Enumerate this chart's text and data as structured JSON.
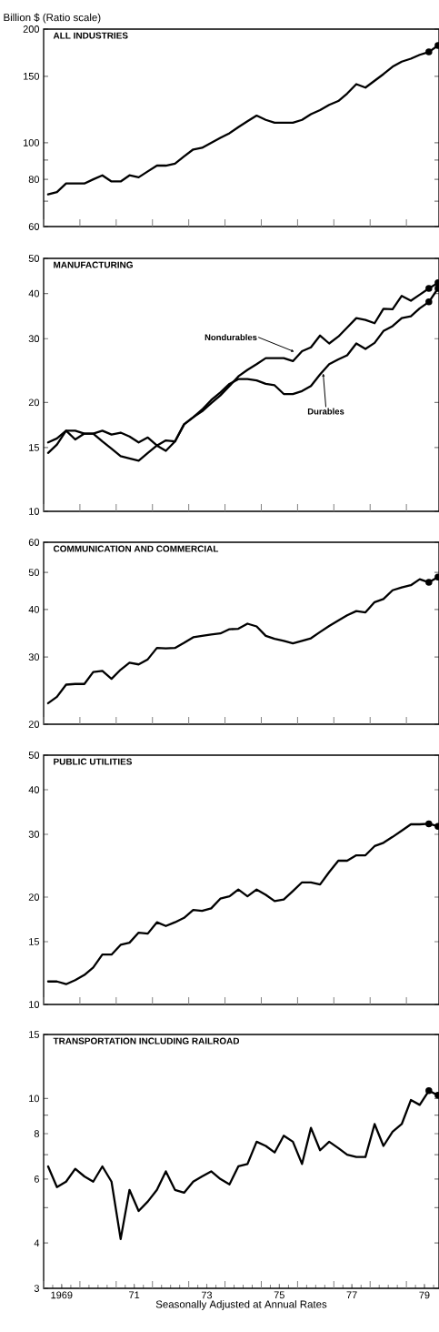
{
  "chart_data": [
    {
      "type": "line",
      "title": "ALL INDUSTRIES",
      "ylabel": "Billion $ (Ratio scale)",
      "log": "y",
      "tick_labels": "y",
      "marker": "none",
      "line_style": "solid",
      "x": [
        "1969-02-15",
        "1969-05-15",
        "1969-08-15",
        "1969-11-15",
        "1970-02-15",
        "1970-05-15",
        "1970-08-15",
        "1970-11-15",
        "1971-02-15",
        "1971-05-15",
        "1971-08-15",
        "1971-11-15",
        "1972-02-15",
        "1972-05-15",
        "1972-08-15",
        "1972-11-15",
        "1973-02-15",
        "1973-05-15",
        "1973-08-15",
        "1973-11-15",
        "1974-02-15",
        "1974-05-15",
        "1974-08-15",
        "1974-11-15",
        "1975-02-15",
        "1975-05-15",
        "1975-08-15",
        "1975-11-15",
        "1976-02-15",
        "1976-05-15",
        "1976-08-15",
        "1976-11-15",
        "1977-02-15",
        "1977-05-15",
        "1977-08-15",
        "1977-11-15",
        "1978-02-15",
        "1978-05-15",
        "1978-08-15",
        "1978-11-15",
        "1979-02-15",
        "1979-05-15",
        "1979-08-15",
        "1979-11-15"
      ],
      "xlim": [
        "1969-01-01",
        "1979-11-25"
      ],
      "ylim": [
        60,
        200
      ],
      "yticks": [
        60,
        {
          "value": 70,
          "label": null
        },
        80,
        {
          "value": 90,
          "label": null
        },
        100,
        150,
        200
      ],
      "series": [
        {
          "color": "#000000",
          "values": [
            73,
            74,
            78,
            78,
            78,
            80,
            82,
            79,
            79,
            82,
            81,
            84,
            87,
            87,
            88,
            92,
            96,
            97,
            100,
            103,
            106,
            110,
            114,
            118,
            115,
            113,
            113,
            113,
            115,
            119,
            122,
            126,
            129,
            135,
            143,
            140,
            146,
            152,
            159,
            164,
            167,
            171,
            174,
            181
          ]
        },
        {
          "type": "scatter",
          "marker": "circle",
          "color": "#000000",
          "x": [
            "1979-08-15",
            "1979-11-15"
          ],
          "values": [
            174,
            181
          ]
        }
      ]
    },
    {
      "type": "line",
      "title": "MANUFACTURING",
      "log": "y",
      "tick_labels": "y",
      "marker": "none",
      "line_style": "solid",
      "x": [
        "1969-02-15",
        "1969-05-15",
        "1969-08-15",
        "1969-11-15",
        "1970-02-15",
        "1970-05-15",
        "1970-08-15",
        "1970-11-15",
        "1971-02-15",
        "1971-05-15",
        "1971-08-15",
        "1971-11-15",
        "1972-02-15",
        "1972-05-15",
        "1972-08-15",
        "1972-11-15",
        "1973-02-15",
        "1973-05-15",
        "1973-08-15",
        "1973-11-15",
        "1974-02-15",
        "1974-05-15",
        "1974-08-15",
        "1974-11-15",
        "1975-02-15",
        "1975-05-15",
        "1975-08-15",
        "1975-11-15",
        "1976-02-15",
        "1976-05-15",
        "1976-08-15",
        "1976-11-15",
        "1977-02-15",
        "1977-05-15",
        "1977-08-15",
        "1977-11-15",
        "1978-02-15",
        "1978-05-15",
        "1978-08-15",
        "1978-11-15",
        "1979-02-15",
        "1979-05-15",
        "1979-08-15",
        "1979-11-15"
      ],
      "xlim": [
        "1969-01-01",
        "1979-11-25"
      ],
      "ylim": [
        10,
        50
      ],
      "yticks": [
        10,
        15,
        20,
        30,
        40,
        50
      ],
      "annotations": [
        {
          "text": "Nondurables",
          "x": "1975-12-01",
          "y": 27.6
        },
        {
          "text": "Durables",
          "x": "1976-09-15",
          "y": 24.1
        }
      ],
      "series": [
        {
          "color": "#000000",
          "values": [
            15.5,
            15.9,
            16.7,
            16.7,
            16.4,
            16.4,
            16.7,
            16.3,
            16.5,
            16.1,
            15.5,
            16.0,
            15.2,
            15.7,
            15.6,
            17.4,
            18.2,
            18.9,
            19.9,
            20.9,
            22.2,
            23.6,
            24.6,
            25.5,
            26.5,
            26.5,
            26.5,
            26.0,
            27.7,
            28.4,
            30.6,
            29.1,
            30.4,
            32.2,
            34.2,
            33.8,
            33.1,
            36.3,
            36.2,
            39.4,
            38.2,
            39.7,
            41.3,
            42.8
          ]
        },
        {
          "color": "#000000",
          "values": [
            14.5,
            15.3,
            16.7,
            15.8,
            16.4,
            16.4,
            15.6,
            14.9,
            14.2,
            14.0,
            13.8,
            14.5,
            15.2,
            14.7,
            15.6,
            17.4,
            18.2,
            19.1,
            20.3,
            21.3,
            22.5,
            23.2,
            23.2,
            23.0,
            22.5,
            22.3,
            21.1,
            21.1,
            21.5,
            22.2,
            23.9,
            25.5,
            26.3,
            27.0,
            29.1,
            28.1,
            29.2,
            31.5,
            32.5,
            34.2,
            34.6,
            36.4,
            37.9,
            41.3
          ]
        },
        {
          "type": "scatter",
          "marker": "circle",
          "color": "#000000",
          "x": [
            "1979-08-15",
            "1979-11-15"
          ],
          "values": [
            41.3,
            42.8
          ]
        },
        {
          "type": "scatter",
          "marker": "circle",
          "color": "#000000",
          "x": [
            "1979-08-15",
            "1979-11-15"
          ],
          "values": [
            37.9,
            41.3
          ]
        }
      ]
    },
    {
      "type": "line",
      "title": "COMMUNICATION AND COMMERCIAL",
      "log": "y",
      "tick_labels": "y",
      "marker": "none",
      "line_style": "solid",
      "x": [
        "1969-02-15",
        "1969-05-15",
        "1969-08-15",
        "1969-11-15",
        "1970-02-15",
        "1970-05-15",
        "1970-08-15",
        "1970-11-15",
        "1971-02-15",
        "1971-05-15",
        "1971-08-15",
        "1971-11-15",
        "1972-02-15",
        "1972-05-15",
        "1972-08-15",
        "1972-11-15",
        "1973-02-15",
        "1973-05-15",
        "1973-08-15",
        "1973-11-15",
        "1974-02-15",
        "1974-05-15",
        "1974-08-15",
        "1974-11-15",
        "1975-02-15",
        "1975-05-15",
        "1975-08-15",
        "1975-11-15",
        "1976-02-15",
        "1976-05-15",
        "1976-08-15",
        "1976-11-15",
        "1977-02-15",
        "1977-05-15",
        "1977-08-15",
        "1977-11-15",
        "1978-02-15",
        "1978-05-15",
        "1978-08-15",
        "1978-11-15",
        "1979-02-15",
        "1979-05-15",
        "1979-08-15",
        "1979-11-15"
      ],
      "xlim": [
        "1969-01-01",
        "1979-11-25"
      ],
      "ylim": [
        20,
        60
      ],
      "yticks": [
        20,
        30,
        40,
        50,
        60
      ],
      "series": [
        {
          "color": "#000000",
          "values": [
            22.7,
            23.6,
            25.4,
            25.5,
            25.5,
            27.4,
            27.6,
            26.3,
            27.8,
            29.0,
            28.7,
            29.6,
            31.7,
            31.6,
            31.7,
            32.7,
            33.8,
            34.1,
            34.4,
            34.6,
            35.5,
            35.6,
            36.7,
            36.1,
            34.1,
            33.5,
            33.1,
            32.6,
            33.1,
            33.6,
            34.9,
            36.2,
            37.4,
            38.6,
            39.6,
            39.3,
            41.8,
            42.6,
            44.9,
            45.7,
            46.3,
            48.0,
            47.1,
            48.6
          ]
        },
        {
          "type": "scatter",
          "marker": "circle",
          "color": "#000000",
          "x": [
            "1979-08-15",
            "1979-11-15"
          ],
          "values": [
            47.1,
            48.6
          ]
        }
      ]
    },
    {
      "type": "line",
      "title": "PUBLIC UTILITIES",
      "log": "y",
      "tick_labels": "y",
      "marker": "none",
      "line_style": "solid",
      "x": [
        "1969-02-15",
        "1969-05-15",
        "1969-08-15",
        "1969-11-15",
        "1970-02-15",
        "1970-05-15",
        "1970-08-15",
        "1970-11-15",
        "1971-02-15",
        "1971-05-15",
        "1971-08-15",
        "1971-11-15",
        "1972-02-15",
        "1972-05-15",
        "1972-08-15",
        "1972-11-15",
        "1973-02-15",
        "1973-05-15",
        "1973-08-15",
        "1973-11-15",
        "1974-02-15",
        "1974-05-15",
        "1974-08-15",
        "1974-11-15",
        "1975-02-15",
        "1975-05-15",
        "1975-08-15",
        "1975-11-15",
        "1976-02-15",
        "1976-05-15",
        "1976-08-15",
        "1976-11-15",
        "1977-02-15",
        "1977-05-15",
        "1977-08-15",
        "1977-11-15",
        "1978-02-15",
        "1978-05-15",
        "1978-08-15",
        "1978-11-15",
        "1979-02-15",
        "1979-05-15",
        "1979-08-15",
        "1979-11-15"
      ],
      "xlim": [
        "1969-01-01",
        "1979-11-25"
      ],
      "ylim": [
        10,
        50
      ],
      "yticks": [
        10,
        15,
        20,
        30,
        40,
        50
      ],
      "series": [
        {
          "color": "#000000",
          "values": [
            11.6,
            11.6,
            11.4,
            11.7,
            12.1,
            12.7,
            13.8,
            13.8,
            14.7,
            14.9,
            15.9,
            15.8,
            17.0,
            16.6,
            17.0,
            17.5,
            18.4,
            18.3,
            18.6,
            19.8,
            20.1,
            21.0,
            20.1,
            21.0,
            20.3,
            19.5,
            19.7,
            20.8,
            22.0,
            22.0,
            21.7,
            23.5,
            25.3,
            25.3,
            26.2,
            26.2,
            27.8,
            28.4,
            29.5,
            30.7,
            32.0,
            32.0,
            32.1,
            31.6
          ]
        },
        {
          "type": "scatter",
          "marker": "circle",
          "color": "#000000",
          "x": [
            "1979-08-15",
            "1979-11-15"
          ],
          "values": [
            32.1,
            31.6
          ]
        }
      ]
    },
    {
      "type": "line",
      "title": "TRANSPORTATION INCLUDING RAILROAD",
      "xlabel": "Seasonally Adjusted at Annual Rates",
      "log": "y",
      "marker": "none",
      "line_style": "solid",
      "x": [
        "1969-02-15",
        "1969-05-15",
        "1969-08-15",
        "1969-11-15",
        "1970-02-15",
        "1970-05-15",
        "1970-08-15",
        "1970-11-15",
        "1971-02-15",
        "1971-05-15",
        "1971-08-15",
        "1971-11-15",
        "1972-02-15",
        "1972-05-15",
        "1972-08-15",
        "1972-11-15",
        "1973-02-15",
        "1973-05-15",
        "1973-08-15",
        "1973-11-15",
        "1974-02-15",
        "1974-05-15",
        "1974-08-15",
        "1974-11-15",
        "1975-02-15",
        "1975-05-15",
        "1975-08-15",
        "1975-11-15",
        "1976-02-15",
        "1976-05-15",
        "1976-08-15",
        "1976-11-15",
        "1977-02-15",
        "1977-05-15",
        "1977-08-15",
        "1977-11-15",
        "1978-02-15",
        "1978-05-15",
        "1978-08-15",
        "1978-11-15",
        "1979-02-15",
        "1979-05-15",
        "1979-08-15",
        "1979-11-15"
      ],
      "xlim": [
        "1969-01-01",
        "1979-11-25"
      ],
      "xticks": [
        {
          "value": "1969-07-01",
          "label": "1969"
        },
        {
          "value": "1971-07-01",
          "label": "71"
        },
        {
          "value": "1973-07-01",
          "label": "73"
        },
        {
          "value": "1975-07-01",
          "label": "75"
        },
        {
          "value": "1977-07-01",
          "label": "77"
        },
        {
          "value": "1979-07-01",
          "label": "79"
        }
      ],
      "ylim": [
        3,
        15
      ],
      "yticks": [
        3,
        4,
        {
          "value": 5,
          "label": null
        },
        6,
        {
          "value": 7,
          "label": null
        },
        8,
        {
          "value": 9,
          "label": null
        },
        10,
        15
      ],
      "series": [
        {
          "color": "#000000",
          "values": [
            6.5,
            5.7,
            5.9,
            6.4,
            6.1,
            5.9,
            6.5,
            5.9,
            4.1,
            5.6,
            4.9,
            5.2,
            5.6,
            6.3,
            5.6,
            5.5,
            5.9,
            6.1,
            6.3,
            6.0,
            5.8,
            6.5,
            6.6,
            7.6,
            7.4,
            7.1,
            7.9,
            7.6,
            6.6,
            8.3,
            7.2,
            7.6,
            7.3,
            7.0,
            6.9,
            6.9,
            8.5,
            7.4,
            8.1,
            8.5,
            9.9,
            9.6,
            10.5,
            10.2
          ]
        },
        {
          "type": "scatter",
          "marker": "circle",
          "color": "#000000",
          "x": [
            "1979-08-15",
            "1979-11-15"
          ],
          "values": [
            10.5,
            10.2
          ]
        }
      ]
    }
  ]
}
